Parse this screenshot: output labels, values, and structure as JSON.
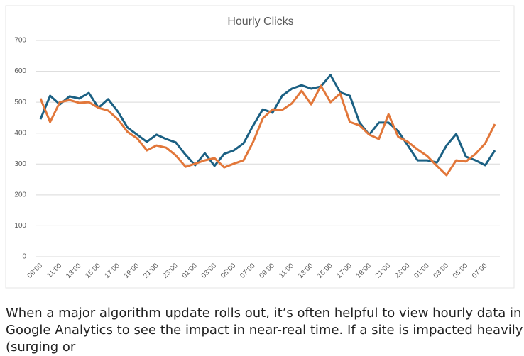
{
  "chart_data": {
    "type": "line",
    "title": "Hourly Clicks",
    "categories": [
      "09:00",
      null,
      "11:00",
      null,
      "13:00",
      null,
      "15:00",
      null,
      "17:00",
      null,
      "19:00",
      null,
      "21:00",
      null,
      "23:00",
      null,
      "01:00",
      null,
      "03:00",
      null,
      "05:00",
      null,
      "07:00",
      null,
      "09:00",
      null,
      "11:00",
      null,
      "13:00",
      null,
      "15:00",
      null,
      "17:00",
      null,
      "19:00",
      null,
      "21:00",
      null,
      "23:00",
      null,
      "01:00",
      null,
      "03:00",
      null,
      "05:00",
      null,
      "07:00",
      null
    ],
    "series": [
      {
        "color": "#1b6083",
        "values": [
          445,
          521,
          493,
          519,
          512,
          530,
          482,
          510,
          470,
          418,
          395,
          372,
          395,
          381,
          370,
          330,
          296,
          335,
          294,
          333,
          344,
          367,
          425,
          477,
          466,
          521,
          544,
          555,
          544,
          551,
          588,
          532,
          521,
          434,
          395,
          434,
          434,
          406,
          360,
          312,
          312,
          305,
          360,
          397,
          324,
          312,
          296,
          344
        ]
      },
      {
        "color": "#e2773a",
        "values": [
          512,
          436,
          500,
          507,
          498,
          500,
          482,
          473,
          445,
          404,
          383,
          344,
          360,
          353,
          328,
          291,
          301,
          312,
          319,
          289,
          301,
          312,
          372,
          448,
          477,
          475,
          496,
          537,
          493,
          553,
          500,
          528,
          436,
          425,
          395,
          381,
          461,
          388,
          372,
          347,
          326,
          294,
          264,
          312,
          308,
          333,
          367,
          429
        ]
      }
    ],
    "ylim": [
      0,
      700
    ],
    "yticks": [
      0,
      100,
      200,
      300,
      400,
      500,
      600,
      700
    ],
    "grid": true
  },
  "caption": "When a major algorithm update rolls out, it’s often helpful to view hourly data in Google Analytics to see the impact in near-real time. If a site is impacted heavily (surging or"
}
